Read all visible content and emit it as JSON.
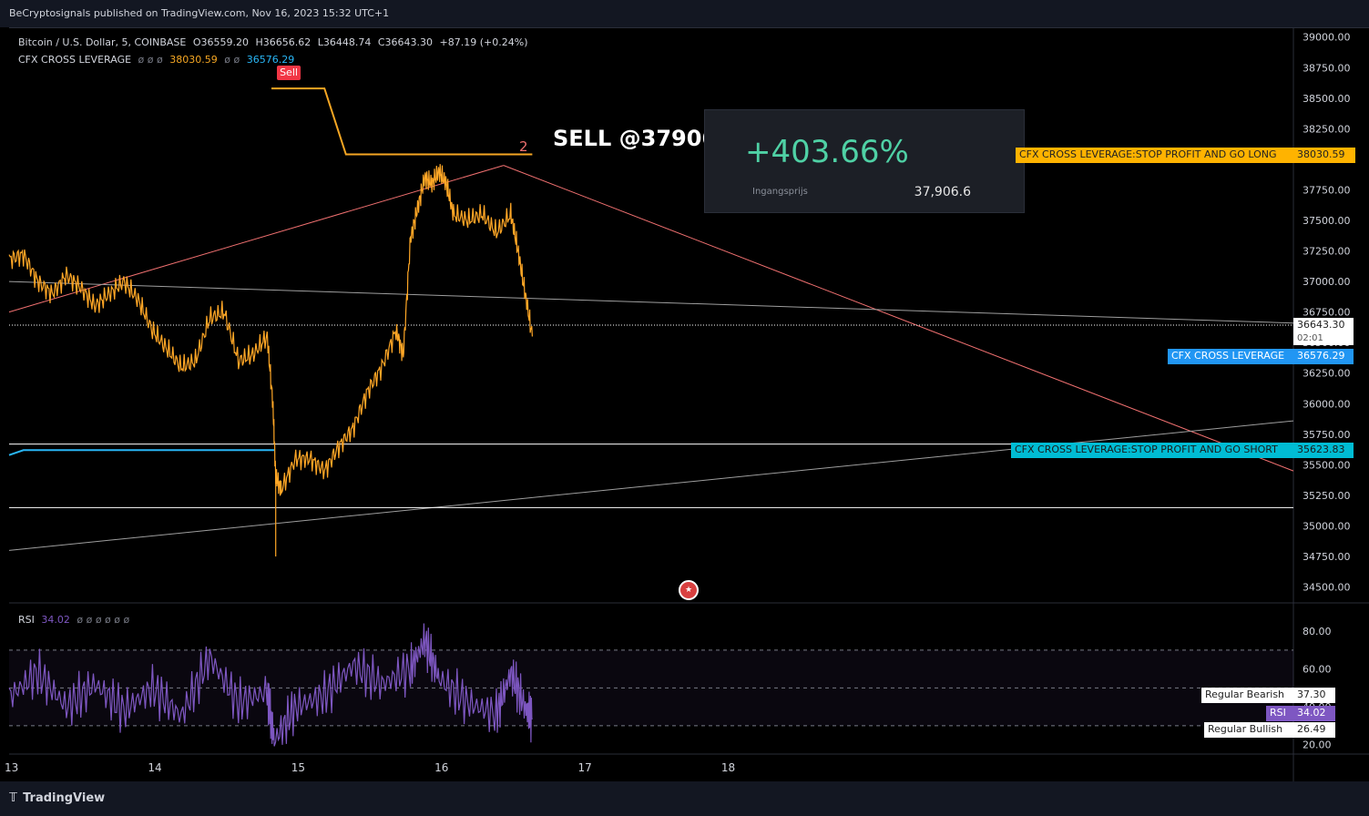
{
  "header": {
    "published": "BeCryptosignals published on TradingView.com, Nov 16, 2023 15:32 UTC+1"
  },
  "legend": {
    "symbol": "Bitcoin / U.S. Dollar, 5, COINBASE",
    "open": "O36559.20",
    "high": "H36656.62",
    "low": "L36448.74",
    "close": "C36643.30",
    "change": "+87.19 (+0.24%)",
    "indicator": "CFX CROSS LEVERAGE",
    "indicator_nulls": "ø ø ø",
    "indicator_val1": "38030.59",
    "indicator_nulls2": "ø ø",
    "indicator_val2": "36576.29"
  },
  "rsi_legend": {
    "name": "RSI",
    "value": "34.02",
    "nulls": "ø ø ø ø ø ø"
  },
  "annotations": {
    "sell_badge": "Sell",
    "sell_note": "SELL @37906",
    "wave_label": "2",
    "pnl_pct": "+403.66%",
    "pnl_label": "Ingangsprijs",
    "pnl_value": "37,906.6"
  },
  "price_tags": {
    "stop_long_label": "CFX CROSS LEVERAGE:STOP PROFIT AND GO LONG",
    "stop_long_value": "38030.59",
    "last_price": "36643.30",
    "countdown": "02:01",
    "cfx_label": "CFX CROSS LEVERAGE",
    "cfx_value": "36576.29",
    "stop_short_label": "CFX CROSS LEVERAGE:STOP PROFIT AND GO SHORT",
    "stop_short_value": "35623.83"
  },
  "rsi_tags": {
    "bearish_label": "Regular Bearish",
    "bearish_value": "37.30",
    "rsi_label": "RSI",
    "rsi_value": "34.02",
    "bullish_label": "Regular Bullish",
    "bullish_value": "26.49"
  },
  "footer": {
    "brand": "TradingView"
  },
  "colors": {
    "price_line": "#ffa726",
    "cfx_orange": "#f5a623",
    "cfx_blue": "#29b6f6",
    "trend_red": "#f07070",
    "rsi_line": "#7e57c2",
    "tag_orange": "#ffb300",
    "tag_cyan": "#00bcd4",
    "tag_blue": "#2196f3"
  },
  "chart_data": [
    {
      "type": "line",
      "name": "price",
      "y_axis_ticks": [
        "39000.00",
        "38750.00",
        "38500.00",
        "38250.00",
        "38000.00",
        "37750.00",
        "37500.00",
        "37250.00",
        "37000.00",
        "36750.00",
        "36500.00",
        "36250.00",
        "36000.00",
        "35750.00",
        "35500.00",
        "35250.00",
        "35000.00",
        "34750.00",
        "34500.00"
      ],
      "x_axis_ticks": [
        "13",
        "14",
        "15",
        "16",
        "17",
        "18"
      ],
      "ylim": [
        34400,
        39050
      ],
      "x_domain_days": [
        13.0,
        21.96
      ],
      "series": [
        {
          "x": [
            13.0,
            13.1,
            13.2,
            13.3,
            13.4,
            13.5,
            13.6,
            13.7,
            13.8,
            13.9,
            14.0,
            14.1,
            14.2,
            14.3,
            14.4,
            14.5,
            14.6,
            14.7,
            14.8,
            14.84,
            14.86,
            14.9,
            15.0,
            15.1,
            15.2,
            15.3,
            15.4,
            15.5,
            15.6,
            15.7,
            15.75,
            15.8,
            15.85,
            15.9,
            15.95,
            16.0,
            16.05,
            16.1,
            16.2,
            16.3,
            16.4,
            16.5,
            16.55,
            16.6,
            16.65
          ],
          "y": [
            37180,
            37220,
            37000,
            36900,
            37050,
            36950,
            36800,
            36900,
            37000,
            36850,
            36600,
            36450,
            36300,
            36350,
            36700,
            36750,
            36350,
            36400,
            36550,
            36000,
            35400,
            35300,
            35550,
            35550,
            35450,
            35650,
            35800,
            36100,
            36300,
            36600,
            36400,
            37350,
            37600,
            37850,
            37800,
            37900,
            37800,
            37550,
            37500,
            37550,
            37400,
            37550,
            37250,
            36900,
            36550
          ]
        }
      ]
    },
    {
      "type": "line",
      "name": "RSI",
      "ylim": [
        15,
        95
      ],
      "y_axis_ticks": [
        "80.00",
        "60.00",
        "40.00",
        "20.00"
      ],
      "levels": [
        70,
        50,
        30
      ],
      "series": [
        {
          "x": [
            13.0,
            13.2,
            13.4,
            13.6,
            13.8,
            14.0,
            14.2,
            14.4,
            14.6,
            14.8,
            14.85,
            15.0,
            15.2,
            15.4,
            15.6,
            15.8,
            15.9,
            16.0,
            16.2,
            16.4,
            16.5,
            16.6,
            16.65
          ],
          "y": [
            45,
            58,
            40,
            52,
            38,
            50,
            35,
            66,
            42,
            48,
            22,
            40,
            46,
            62,
            52,
            60,
            75,
            55,
            42,
            36,
            58,
            40,
            34
          ]
        }
      ]
    }
  ]
}
